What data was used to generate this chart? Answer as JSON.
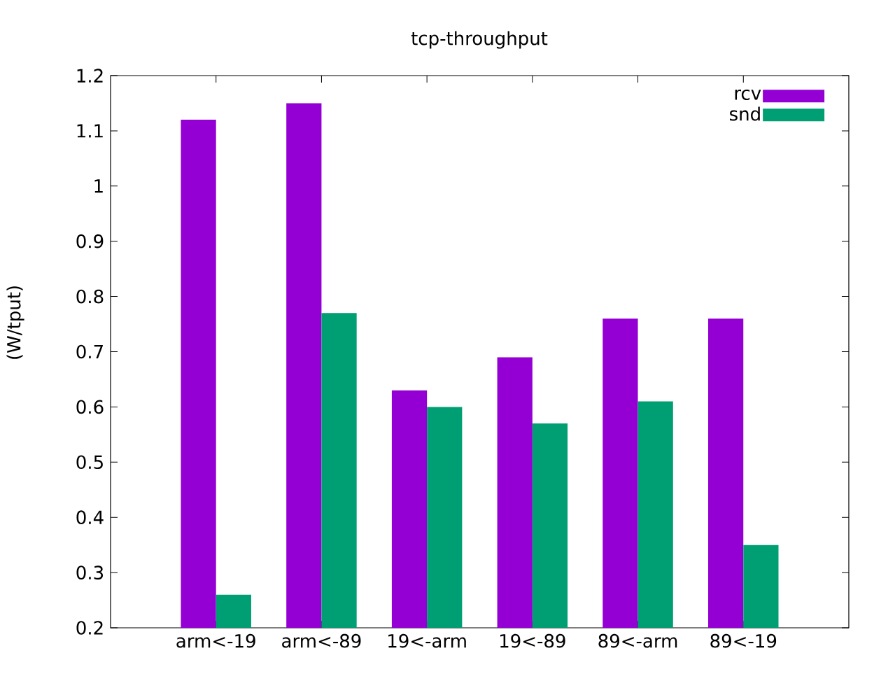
{
  "chart_data": {
    "type": "bar",
    "title": "tcp-throughput",
    "ylabel": "(W/tput)",
    "categories": [
      "arm<-19",
      "arm<-89",
      "19<-arm",
      "19<-89",
      "89<-arm",
      "89<-19"
    ],
    "series": [
      {
        "name": "rcv",
        "color": "#9400d3",
        "values": [
          1.12,
          1.15,
          0.63,
          0.69,
          0.76,
          0.76
        ]
      },
      {
        "name": "snd",
        "color": "#009e73",
        "values": [
          0.26,
          0.77,
          0.6,
          0.57,
          0.61,
          0.35
        ]
      }
    ],
    "ylim": [
      0.2,
      1.2
    ],
    "yticks": [
      0.2,
      0.3,
      0.4,
      0.5,
      0.6,
      0.7,
      0.8,
      0.9,
      1,
      1.1,
      1.2
    ],
    "legend": "top right"
  }
}
